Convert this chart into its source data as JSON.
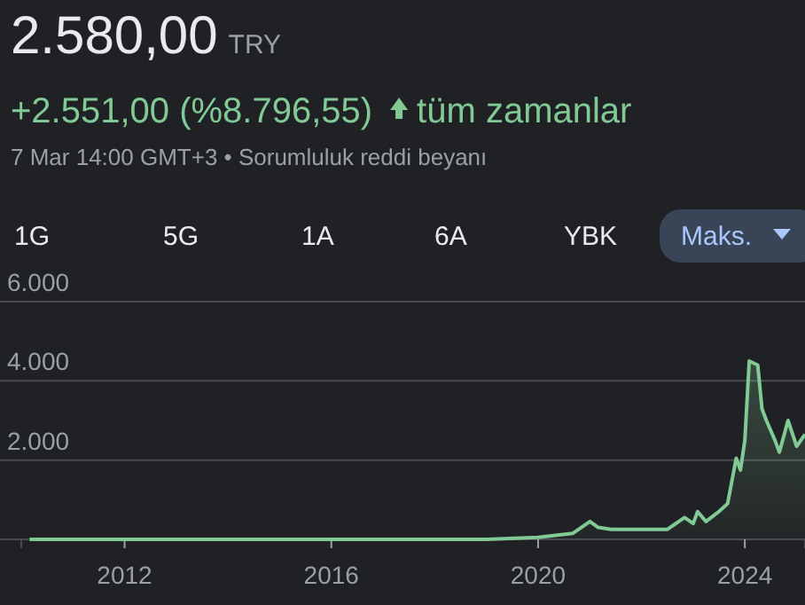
{
  "chart_data": {
    "type": "area",
    "title": "2.580,00",
    "subtitle": "+2.551,00 (%8.796,55)",
    "annotations": [
      "TRY",
      "tüm zamanlar",
      "7 Mar 14:00 GMT+3 • Sorumluluk reddi beyanı",
      "1G",
      "5G",
      "1A",
      "6A",
      "YBK",
      "Maks."
    ],
    "x": [
      "2010-03",
      "2011-01",
      "2012-01",
      "2013-01",
      "2014-01",
      "2015-01",
      "2016-01",
      "2017-01",
      "2018-01",
      "2019-01",
      "2020-01",
      "2020-09",
      "2021-01",
      "2021-03",
      "2021-06",
      "2022-01",
      "2022-07",
      "2022-11",
      "2023-01",
      "2023-02",
      "2023-04",
      "2023-07",
      "2023-09",
      "2023-11",
      "2023-12",
      "2024-01",
      "2024-02",
      "2024-04",
      "2024-05",
      "2024-06",
      "2024-08",
      "2024-09",
      "2024-11",
      "2025-01",
      "2025-03"
    ],
    "series": [
      {
        "color": "#81c995",
        "values": [
          0,
          0,
          0,
          0,
          0,
          0,
          0,
          0,
          0,
          0,
          50,
          150,
          450,
          300,
          250,
          250,
          250,
          550,
          400,
          700,
          450,
          700,
          900,
          2050,
          1750,
          2500,
          4500,
          4400,
          3300,
          3000,
          2500,
          2200,
          3000,
          2350,
          2650
        ]
      }
    ],
    "xlim": [
      "2010-01",
      "2025-03"
    ],
    "xticks": [
      {
        "value": "2012-01",
        "label": "2012"
      },
      {
        "value": "2016-01",
        "label": "2016"
      },
      {
        "value": "2020-01",
        "label": "2020"
      },
      {
        "value": "2024-01",
        "label": "2024"
      }
    ],
    "ylim": [
      0,
      6000
    ],
    "yticks": [
      {
        "value": 0,
        "label": null
      },
      {
        "value": 2000,
        "label": "2.000"
      },
      {
        "value": 4000,
        "label": "4.000"
      },
      {
        "value": 6000,
        "label": "6.000"
      }
    ],
    "grid": "y"
  }
}
